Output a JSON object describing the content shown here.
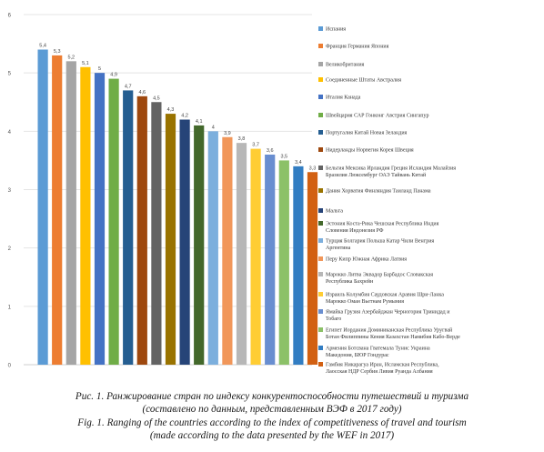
{
  "chart_data": {
    "type": "bar",
    "ylim": [
      0,
      6
    ],
    "yticks": [
      0,
      1,
      2,
      3,
      4,
      5,
      6
    ],
    "grid": true,
    "legend_position": "right",
    "categories": [
      "Испания",
      "Франция Германия Япония",
      "Великобритания",
      "Соединенные Штаты Австралия",
      "Италия Канада",
      "Швейцария САР Гонконг Австрия Сингапур",
      "Португалия Китай Новая Зеландия",
      "Нидерланды Норвегия Корея Швеция",
      "Бельгия Мексика Ирландия Греция Исландия Малайзия Бразилия Люксембург ОАЭ Тайвань Китай",
      "Дания Хорватия Финляндия Таиланд Панама",
      "Мальта",
      "Эстония Коста-Рика Чешская Республика Индия Словения Индонезия РФ",
      "Турция Болгария Польша Катар Чили Венгрия Аргентина",
      "Перу Кипр Южная Африка Латвия",
      "Марокко Литва Эквадор Барбадос Словакская Республика Бахрейн",
      "Израиль Колумбия Саудовская Аравия Шри-Ланка Марокко Оман Вьетнам Румыния",
      "Ямайка Грузия Азербайджан Черногория Тринидад и Тобаго",
      "Египет Иордания Доминиканская Республика Уругвай Ботан Филиппины Кения Казахстан Намибия Кабо-Верде",
      "Армения Ботсвана Гватемала Тунис Украина Македония, БЮР Гондурас",
      "Гамбия Никарагуа Иран, Исламская Республика, Лаосская НДР Сербия Ливия Руанда Албания"
    ],
    "values": [
      5.4,
      5.3,
      5.2,
      5.1,
      5,
      4.9,
      4.7,
      4.6,
      4.5,
      4.3,
      4.2,
      4.1,
      4,
      3.9,
      3.8,
      3.7,
      3.6,
      3.5,
      3.4,
      3.3
    ],
    "value_labels": [
      "5,4",
      "5,3",
      "5,2",
      "5,1",
      "5",
      "4,9",
      "4,7",
      "4,6",
      "4,5",
      "4,3",
      "4,2",
      "4,1",
      "4",
      "3,9",
      "3,8",
      "3,7",
      "3,6",
      "3,5",
      "3,4",
      "3,3"
    ],
    "colors": [
      "#5b9bd5",
      "#ed7d31",
      "#a5a5a5",
      "#ffc000",
      "#4472c4",
      "#70ad47",
      "#255e91",
      "#9e480e",
      "#636363",
      "#997300",
      "#264478",
      "#43682b",
      "#7cafdd",
      "#f1975a",
      "#b7b7b7",
      "#ffcd33",
      "#698ed0",
      "#8cc168",
      "#327dc2",
      "#d26012"
    ]
  },
  "captions": {
    "ru_line1": "Рис. 1. Ранжирование стран по индексу конкурентоспособности путешествий и туризма",
    "ru_line2": "(составлено по данным, представленным ВЭФ в 2017 году)",
    "en_line1": "Fig. 1. Ranging of the countries according to the index of competitiveness of travel and tourism",
    "en_line2": "(made according to the data presented by the WEF in 2017)"
  }
}
